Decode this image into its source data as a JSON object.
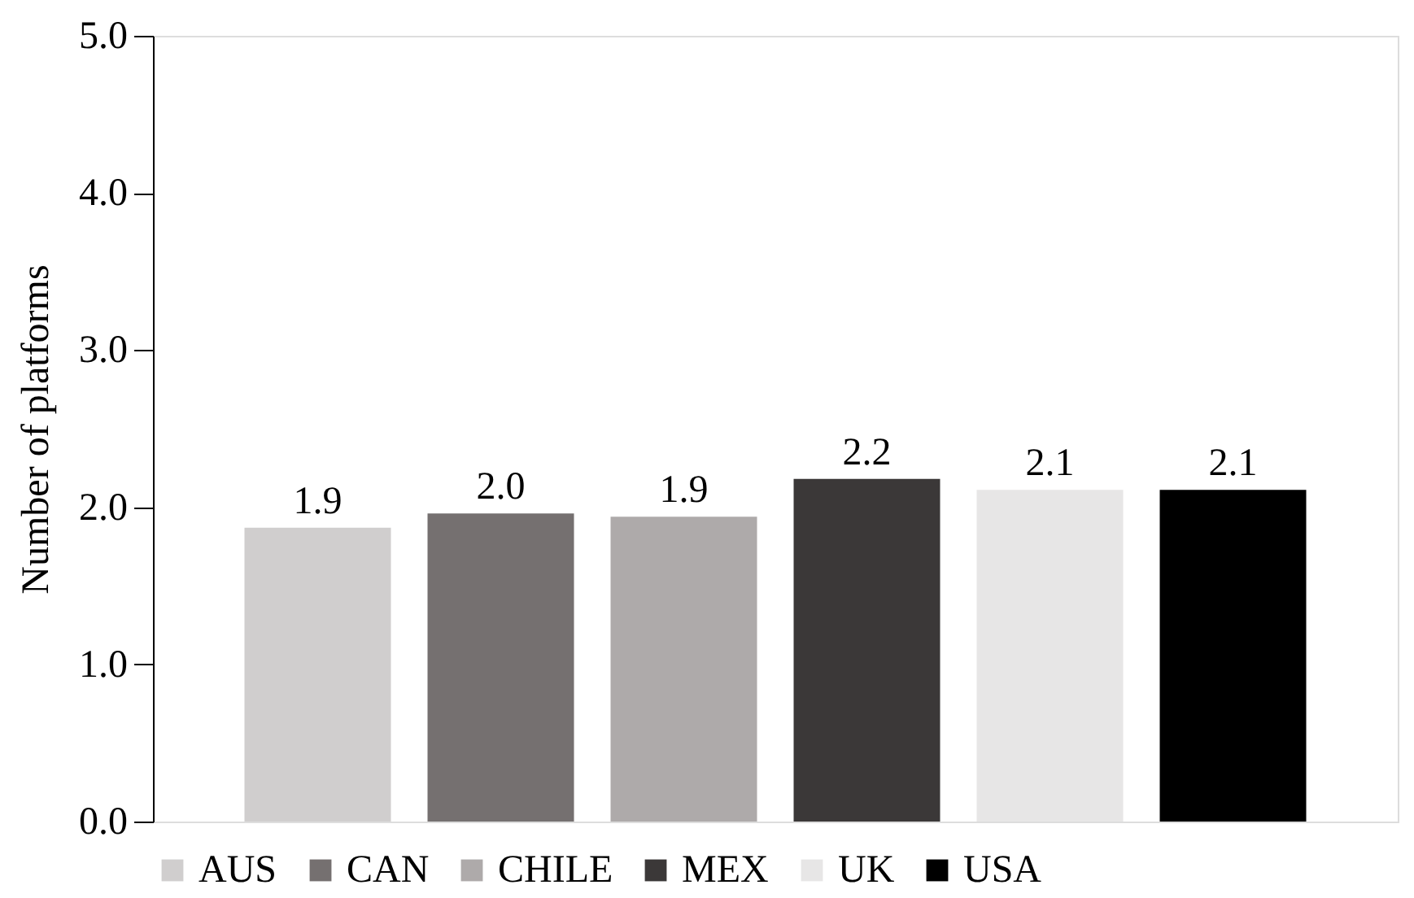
{
  "chart_data": {
    "type": "bar",
    "ylabel": "Number of platforms",
    "categories": [
      null
    ],
    "series": [
      {
        "name": "AUS",
        "color": "#d0cece",
        "values": [
          1.87
        ],
        "value_labels": [
          "1.9"
        ]
      },
      {
        "name": "CAN",
        "color": "#757070",
        "values": [
          1.96
        ],
        "value_labels": [
          "2.0"
        ]
      },
      {
        "name": "CHILE",
        "color": "#aeaaaa",
        "values": [
          1.94
        ],
        "value_labels": [
          "1.9"
        ]
      },
      {
        "name": "MEX",
        "color": "#3b3838",
        "values": [
          2.18
        ],
        "value_labels": [
          "2.2"
        ]
      },
      {
        "name": "UK",
        "color": "#e7e6e6",
        "values": [
          2.11
        ],
        "value_labels": [
          "2.1"
        ]
      },
      {
        "name": "USA",
        "color": "#000000",
        "values": [
          2.11
        ],
        "value_labels": [
          "2.1"
        ]
      }
    ],
    "ylim": [
      0,
      5
    ],
    "yticks": [
      {
        "value": 0,
        "label": "0.0"
      },
      {
        "value": 1,
        "label": "1.0"
      },
      {
        "value": 2,
        "label": "2.0"
      },
      {
        "value": 3,
        "label": "3.0"
      },
      {
        "value": 4,
        "label": "4.0"
      },
      {
        "value": 5,
        "label": "5.0"
      }
    ],
    "grid": false,
    "legend": "bottom",
    "tick_labels": "y"
  }
}
